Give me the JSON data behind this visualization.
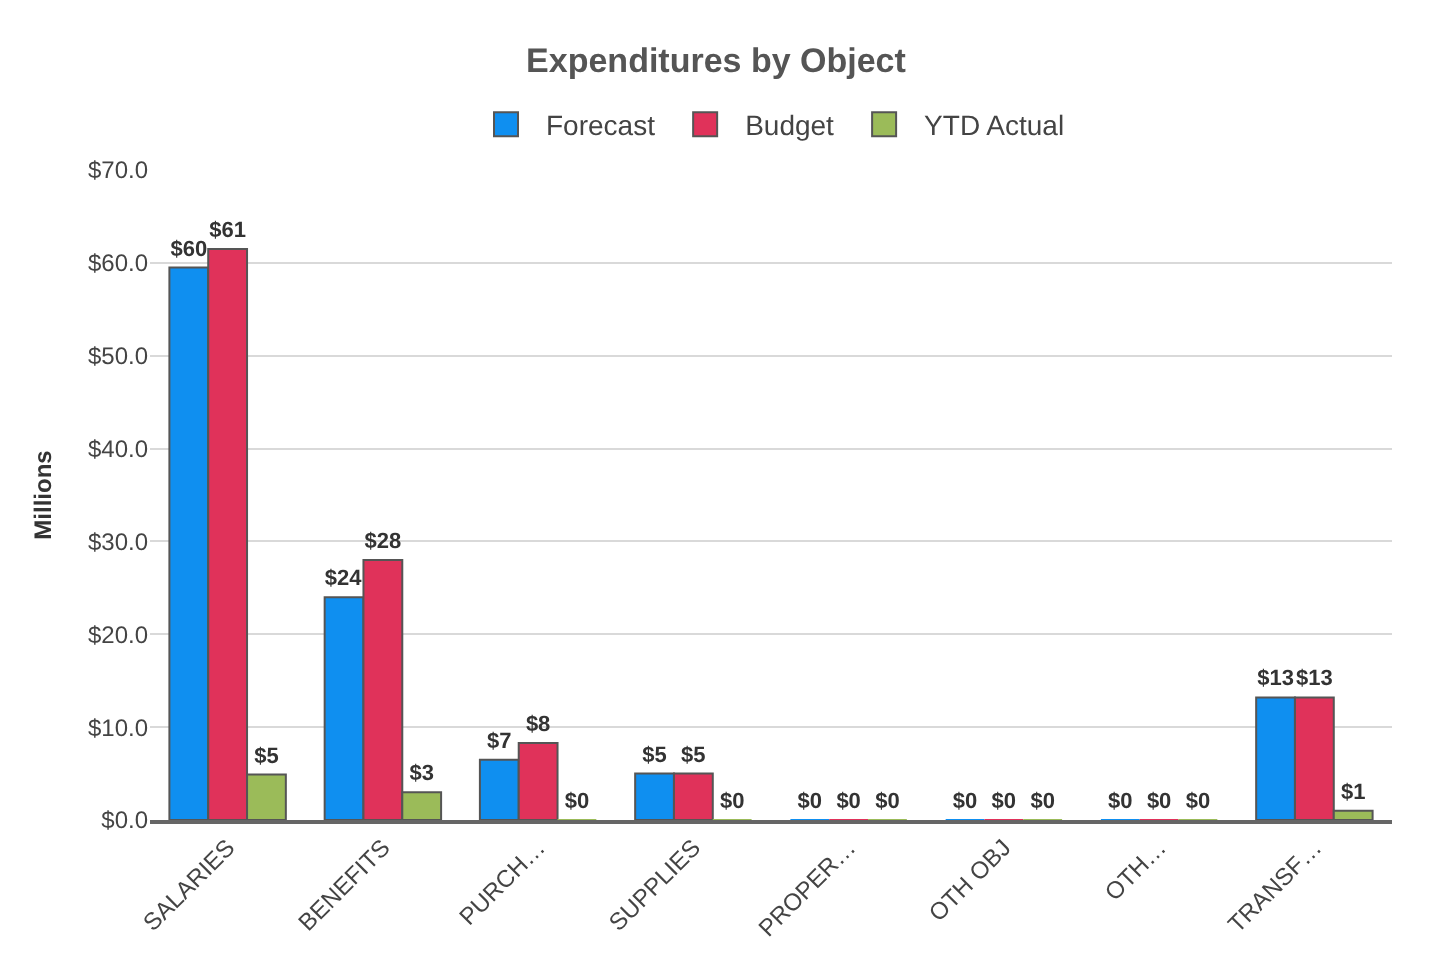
{
  "chart_data": {
    "type": "bar",
    "title": "Expenditures by Object",
    "ylabel": "Millions",
    "categories": [
      "SALARIES",
      "BENEFITS",
      "PURCH…",
      "SUPPLIES",
      "PROPER…",
      "OTH OBJ",
      "OTH…",
      "TRANSF…"
    ],
    "series": [
      {
        "name": "Forecast",
        "color": "#0f8ff0",
        "values": [
          59.5,
          24.0,
          6.5,
          5.0,
          0,
          0,
          0,
          13.2
        ],
        "value_labels": [
          "$60",
          "$24",
          "$7",
          "$5",
          "$0",
          "$0",
          "$0",
          "$13"
        ]
      },
      {
        "name": "Budget",
        "color": "#e0325a",
        "values": [
          61.5,
          28.0,
          8.3,
          5.0,
          0,
          0,
          0,
          13.2
        ],
        "value_labels": [
          "$61",
          "$28",
          "$8",
          "$5",
          "$0",
          "$0",
          "$0",
          "$13"
        ]
      },
      {
        "name": "YTD Actual",
        "color": "#9bbb59",
        "values": [
          4.9,
          3.0,
          0,
          0,
          0,
          0,
          0,
          1.0
        ],
        "value_labels": [
          "$5",
          "$3",
          "$0",
          "$0",
          "$0",
          "$0",
          "$0",
          "$1"
        ]
      }
    ],
    "ylim": [
      0,
      70
    ],
    "yticks": [
      {
        "value": 0,
        "label": "$0.0"
      },
      {
        "value": 10,
        "label": "$10.0"
      },
      {
        "value": 20,
        "label": "$20.0"
      },
      {
        "value": 30,
        "label": "$30.0"
      },
      {
        "value": 40,
        "label": "$40.0"
      },
      {
        "value": 50,
        "label": "$50.0"
      },
      {
        "value": 60,
        "label": "$60.0"
      },
      {
        "value": 70,
        "label": "$70.0"
      }
    ],
    "grid": "y",
    "legend": "top"
  }
}
